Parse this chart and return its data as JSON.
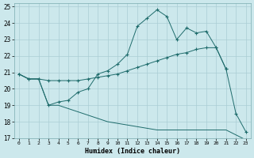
{
  "xlabel": "Humidex (Indice chaleur)",
  "xlim": [
    -0.5,
    23.5
  ],
  "ylim": [
    17,
    25.2
  ],
  "yticks": [
    17,
    18,
    19,
    20,
    21,
    22,
    23,
    24,
    25
  ],
  "xticks": [
    0,
    1,
    2,
    3,
    4,
    5,
    6,
    7,
    8,
    9,
    10,
    11,
    12,
    13,
    14,
    15,
    16,
    17,
    18,
    19,
    20,
    21,
    22,
    23
  ],
  "bg_color": "#cce8ec",
  "line_color": "#1e6b6b",
  "grid_color": "#aacdd4",
  "series1_x": [
    0,
    1,
    2,
    3,
    4,
    5,
    6,
    7,
    8,
    9,
    10,
    11,
    12,
    13,
    14,
    15,
    16,
    17,
    18,
    19,
    20,
    21,
    22,
    23
  ],
  "series1_y": [
    20.9,
    20.6,
    20.6,
    19.0,
    19.2,
    19.3,
    19.8,
    20.0,
    20.9,
    21.1,
    21.5,
    22.1,
    23.8,
    24.3,
    24.8,
    24.4,
    23.0,
    23.7,
    23.4,
    23.5,
    22.5,
    21.2,
    18.5,
    17.4
  ],
  "series2_x": [
    0,
    1,
    2,
    3,
    4,
    5,
    6,
    7,
    8,
    9,
    10,
    11,
    12,
    13,
    14,
    15,
    16,
    17,
    18,
    19,
    20,
    21
  ],
  "series2_y": [
    20.9,
    20.6,
    20.6,
    20.5,
    20.5,
    20.5,
    20.5,
    20.6,
    20.7,
    20.8,
    20.9,
    21.1,
    21.3,
    21.5,
    21.7,
    21.9,
    22.1,
    22.2,
    22.4,
    22.5,
    22.5,
    21.2
  ],
  "series3_x": [
    0,
    1,
    2,
    3,
    4,
    5,
    6,
    7,
    8,
    9,
    10,
    11,
    12,
    13,
    14,
    15,
    16,
    17,
    18,
    19,
    20,
    21,
    22,
    23
  ],
  "series3_y": [
    20.9,
    20.6,
    20.6,
    19.0,
    19.0,
    18.8,
    18.6,
    18.4,
    18.2,
    18.0,
    17.9,
    17.8,
    17.7,
    17.6,
    17.5,
    17.5,
    17.5,
    17.5,
    17.5,
    17.5,
    17.5,
    17.5,
    17.2,
    16.9
  ]
}
